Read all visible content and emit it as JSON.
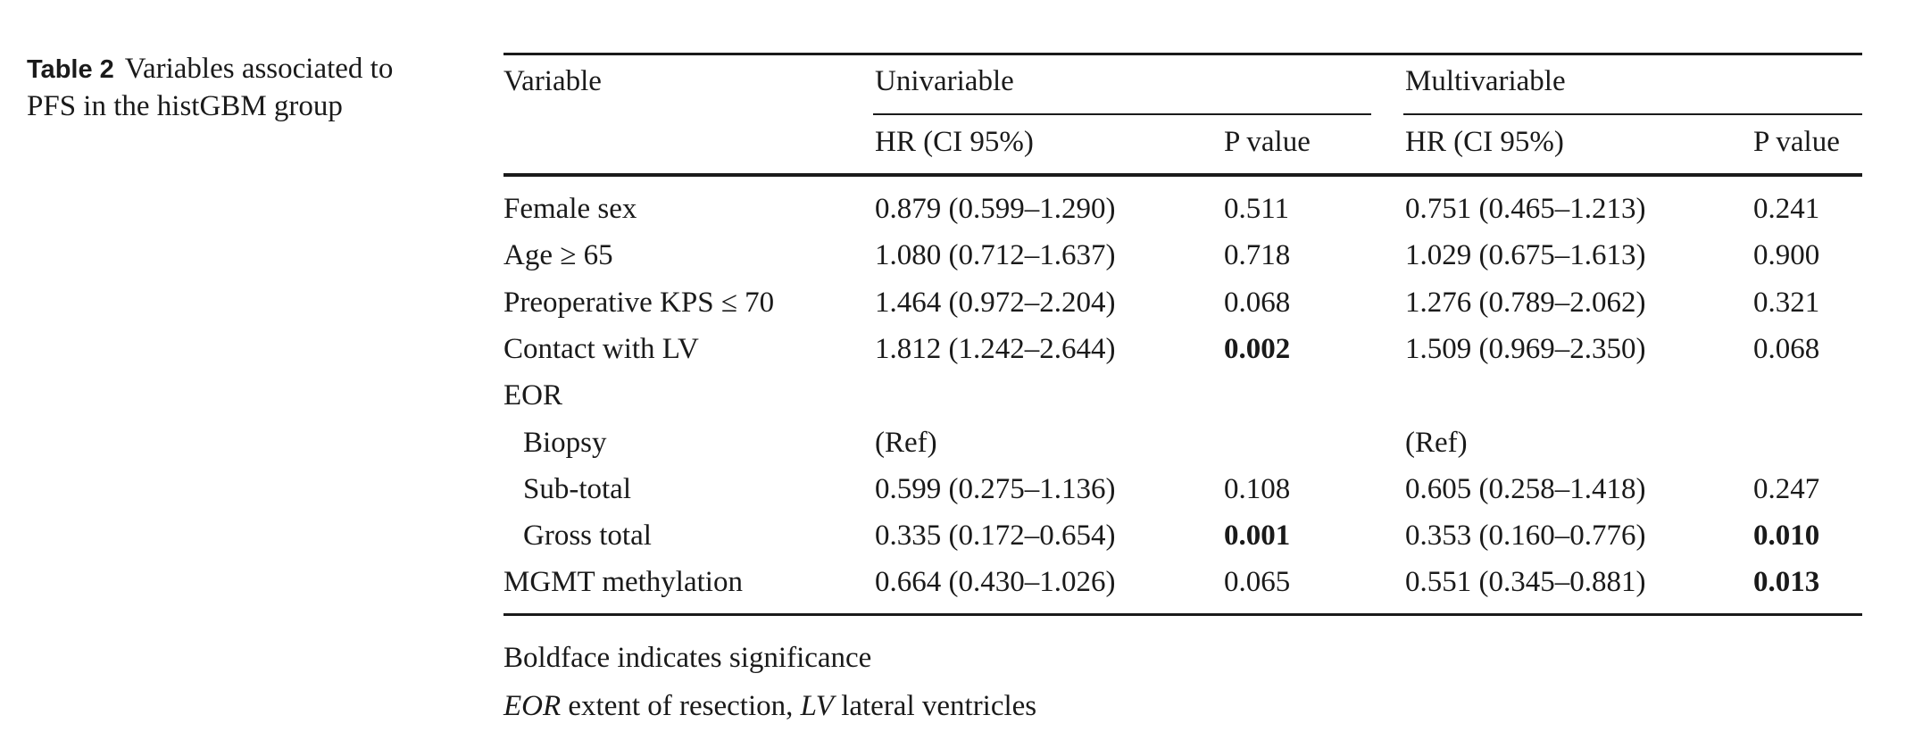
{
  "caption": {
    "label": "Table 2",
    "text": "Variables associated to PFS in the histGBM group"
  },
  "headers": {
    "variable": "Variable",
    "univariable": "Univariable",
    "multivariable": "Multivariable",
    "uni_hr": "HR (CI 95%)",
    "uni_p": "P value",
    "multi_hr": "HR (CI 95%)",
    "multi_p": "P value"
  },
  "rows": [
    {
      "variable": "Female sex",
      "indent": false,
      "uni_hr": "0.879 (0.599–1.290)",
      "uni_p": "0.511",
      "uni_p_bold": false,
      "multi_hr": "0.751 (0.465–1.213)",
      "multi_p": "0.241",
      "multi_p_bold": false
    },
    {
      "variable": "Age ≥ 65",
      "indent": false,
      "uni_hr": "1.080 (0.712–1.637)",
      "uni_p": "0.718",
      "uni_p_bold": false,
      "multi_hr": "1.029 (0.675–1.613)",
      "multi_p": "0.900",
      "multi_p_bold": false
    },
    {
      "variable": "Preoperative KPS ≤ 70",
      "indent": false,
      "uni_hr": "1.464 (0.972–2.204)",
      "uni_p": "0.068",
      "uni_p_bold": false,
      "multi_hr": "1.276 (0.789–2.062)",
      "multi_p": "0.321",
      "multi_p_bold": false
    },
    {
      "variable": "Contact with LV",
      "indent": false,
      "uni_hr": "1.812 (1.242–2.644)",
      "uni_p": "0.002",
      "uni_p_bold": true,
      "multi_hr": "1.509 (0.969–2.350)",
      "multi_p": "0.068",
      "multi_p_bold": false
    },
    {
      "variable": "EOR",
      "indent": false,
      "uni_hr": "",
      "uni_p": "",
      "uni_p_bold": false,
      "multi_hr": "",
      "multi_p": "",
      "multi_p_bold": false
    },
    {
      "variable": "Biopsy",
      "indent": true,
      "uni_hr": "(Ref)",
      "uni_p": "",
      "uni_p_bold": false,
      "multi_hr": "(Ref)",
      "multi_p": "",
      "multi_p_bold": false
    },
    {
      "variable": "Sub-total",
      "indent": true,
      "uni_hr": "0.599 (0.275–1.136)",
      "uni_p": "0.108",
      "uni_p_bold": false,
      "multi_hr": "0.605 (0.258–1.418)",
      "multi_p": "0.247",
      "multi_p_bold": false
    },
    {
      "variable": "Gross total",
      "indent": true,
      "uni_hr": "0.335 (0.172–0.654)",
      "uni_p": "0.001",
      "uni_p_bold": true,
      "multi_hr": "0.353 (0.160–0.776)",
      "multi_p": "0.010",
      "multi_p_bold": true
    },
    {
      "variable": "MGMT methylation",
      "indent": false,
      "uni_hr": "0.664 (0.430–1.026)",
      "uni_p": "0.065",
      "uni_p_bold": false,
      "multi_hr": "0.551 (0.345–0.881)",
      "multi_p": "0.013",
      "multi_p_bold": true
    }
  ],
  "footnotes": {
    "significance": "Boldface indicates significance",
    "abbr_eor": "EOR",
    "abbr_eor_text": "extent of resection,",
    "abbr_lv": "LV",
    "abbr_lv_text": "lateral ventricles"
  }
}
